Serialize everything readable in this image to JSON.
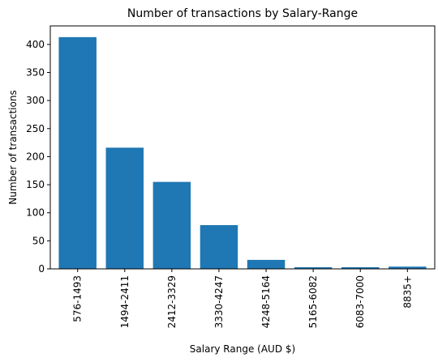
{
  "chart_data": {
    "type": "bar",
    "title": "Number of transactions by Salary-Range",
    "xlabel": "Salary Range (AUD $)",
    "ylabel": "Number of transactions",
    "categories": [
      "576-1493",
      "1494-2411",
      "2412-3329",
      "3330-4247",
      "4248-5164",
      "5165-6082",
      "6083-7000",
      "8835+"
    ],
    "values": [
      413,
      216,
      155,
      78,
      16,
      3,
      3,
      4
    ],
    "ylim": [
      0,
      433
    ],
    "yticks": [
      "0",
      "50",
      "100",
      "150",
      "200",
      "250",
      "300",
      "350",
      "400"
    ],
    "bar_color": "#1f77b4",
    "grid": false,
    "legend": "none"
  }
}
